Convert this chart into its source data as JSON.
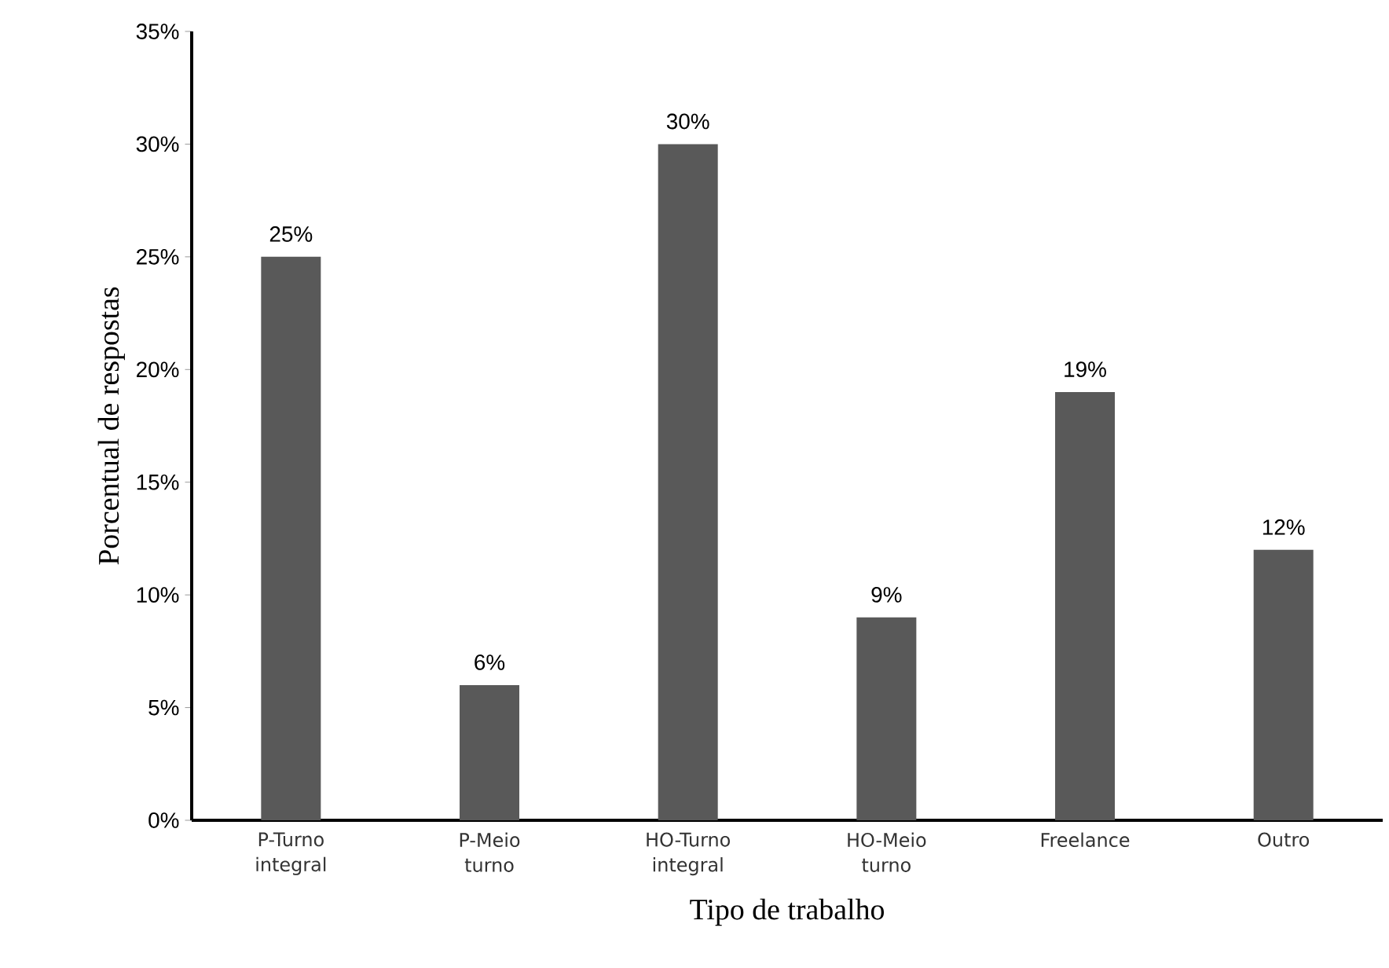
{
  "chart_data": {
    "type": "bar",
    "xlabel": "Tipo de trabalho",
    "ylabel": "Porcentual de respostas",
    "categories": [
      "P-Turno integral",
      "P-Meio turno",
      "HO-Turno integral",
      "HO-Meio turno",
      "Freelance",
      "Outro"
    ],
    "values": [
      25,
      6,
      30,
      9,
      19,
      12
    ],
    "value_labels": [
      "25%",
      "6%",
      "30%",
      "9%",
      "19%",
      "12%"
    ],
    "color": "#595959",
    "ylim": [
      0,
      35
    ],
    "yticks": [
      {
        "value": 0,
        "label": "0%"
      },
      {
        "value": 5,
        "label": "5%"
      },
      {
        "value": 10,
        "label": "10%"
      },
      {
        "value": 15,
        "label": "15%"
      },
      {
        "value": 20,
        "label": "20%"
      },
      {
        "value": 25,
        "label": "25%"
      },
      {
        "value": 30,
        "label": "30%"
      },
      {
        "value": 35,
        "label": "35%"
      }
    ],
    "grid": false
  }
}
